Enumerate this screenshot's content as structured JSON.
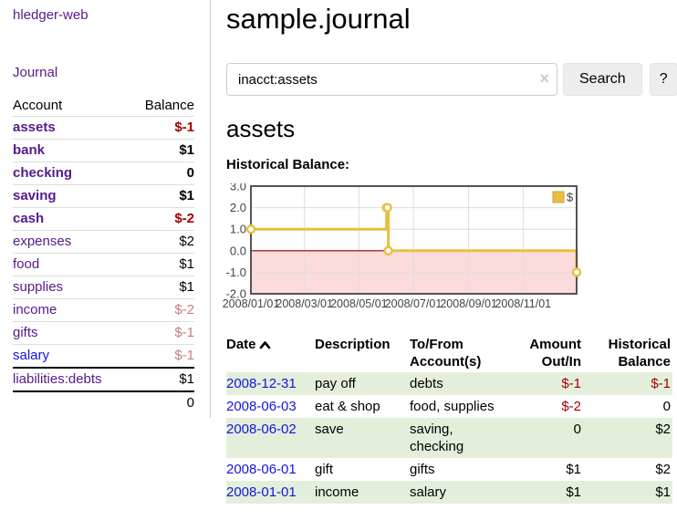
{
  "app": {
    "title": "hledger-web"
  },
  "sidebar": {
    "journal_link": "Journal",
    "accounts_table": {
      "headers": {
        "account": "Account",
        "balance": "Balance"
      },
      "rows": [
        {
          "name": "assets",
          "balance": "$-1",
          "indent": 1,
          "bold": true,
          "name_color": "purple",
          "balance_tone": "neg"
        },
        {
          "name": "bank",
          "balance": "$1",
          "indent": 2,
          "bold": true,
          "name_color": "purple",
          "balance_tone": "pos"
        },
        {
          "name": "checking",
          "balance": "0",
          "indent": 3,
          "bold": true,
          "name_color": "purple",
          "balance_tone": "pos"
        },
        {
          "name": "saving",
          "balance": "$1",
          "indent": 3,
          "bold": true,
          "name_color": "purple",
          "balance_tone": "pos"
        },
        {
          "name": "cash",
          "balance": "$-2",
          "indent": 2,
          "bold": true,
          "name_color": "purple",
          "balance_tone": "neg"
        },
        {
          "name": "expenses",
          "balance": "$2",
          "indent": 1,
          "bold": false,
          "name_color": "purple",
          "balance_tone": "pos"
        },
        {
          "name": "food",
          "balance": "$1",
          "indent": 2,
          "bold": false,
          "name_color": "purple",
          "balance_tone": "pos"
        },
        {
          "name": "supplies",
          "balance": "$1",
          "indent": 2,
          "bold": false,
          "name_color": "purple",
          "balance_tone": "pos"
        },
        {
          "name": "income",
          "balance": "$-2",
          "indent": 1,
          "bold": false,
          "name_color": "purple",
          "balance_tone": "soft-neg"
        },
        {
          "name": "gifts",
          "balance": "$-1",
          "indent": 2,
          "bold": false,
          "name_color": "purple",
          "balance_tone": "soft-neg"
        },
        {
          "name": "salary",
          "balance": "$-1",
          "indent": 2,
          "bold": false,
          "name_color": "blue",
          "balance_tone": "soft-neg"
        },
        {
          "name": "liabilities:debts",
          "balance": "$1",
          "indent": 1,
          "bold": false,
          "name_color": "purple",
          "balance_tone": "pos"
        }
      ],
      "total": "0"
    }
  },
  "main": {
    "title": "sample.journal",
    "search": {
      "query": "inacct:assets",
      "clear_icon": "×",
      "search_label": "Search",
      "help_label": "?"
    },
    "account_heading": "assets",
    "chart_label": "Historical Balance:",
    "register_table": {
      "headers": [
        {
          "label": "Date",
          "sort_icon": "chevron-up"
        },
        {
          "label": "Description"
        },
        {
          "label": "To/From Account(s)"
        },
        {
          "label": "Amount Out/In"
        },
        {
          "label": "Historical Balance"
        }
      ],
      "rows": [
        {
          "date": "2008-12-31",
          "description": "pay off",
          "accounts": "debts",
          "amount": "$-1",
          "balance": "$-1"
        },
        {
          "date": "2008-06-03",
          "description": "eat & shop",
          "accounts": "food, supplies",
          "amount": "$-2",
          "balance": "0"
        },
        {
          "date": "2008-06-02",
          "description": "save",
          "accounts": "saving, checking",
          "amount": "0",
          "balance": "$2"
        },
        {
          "date": "2008-06-01",
          "description": "gift",
          "accounts": "gifts",
          "amount": "$1",
          "balance": "$2"
        },
        {
          "date": "2008-01-01",
          "description": "income",
          "accounts": "salary",
          "amount": "$1",
          "balance": "$1"
        }
      ]
    }
  },
  "chart_data": {
    "type": "line",
    "step": true,
    "title": "Historical Balance:",
    "legend": [
      {
        "label": "$"
      }
    ],
    "x_start": "2008-01-01",
    "x_end": "2008-12-31",
    "points": [
      {
        "date": "2008-01-01",
        "value": 1
      },
      {
        "date": "2008-06-01",
        "value": 2
      },
      {
        "date": "2008-06-02",
        "value": 2
      },
      {
        "date": "2008-06-03",
        "value": 0
      },
      {
        "date": "2008-12-31",
        "value": -1
      }
    ],
    "ylim": [
      -2,
      3
    ],
    "ytick_labels": [
      "3.0",
      "2.0",
      "1.0",
      "0.0",
      "-1.0",
      "-2.0"
    ],
    "xtick_labels": [
      "2008/01/01",
      "2008/03/01",
      "2008/05/01",
      "2008/07/01",
      "2008/09/01",
      "2008/11/01"
    ],
    "grid": true,
    "legend_position": "top-right",
    "negative_region_shaded": true,
    "colors": {
      "line": "#e8c03f",
      "marker_fill": "#ffffff",
      "legend_border": "#c9a43b",
      "negative_fill": "#fbdbdb",
      "zero_line": "#8b0000",
      "grid": "#dedede",
      "border": "#545454",
      "axis_text": "#444444"
    }
  }
}
